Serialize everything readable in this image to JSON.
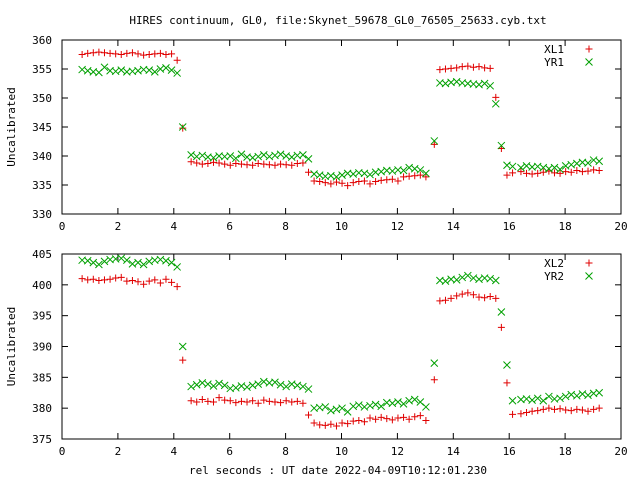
{
  "title": "HIRES continuum, GL0, file:Skynet_59678_GL0_76505_25633.cyb.txt",
  "xlabel": "rel seconds : UT date 2022-04-09T10:12:01.230",
  "chart_data": [
    {
      "type": "scatter",
      "ylabel": "Uncalibrated",
      "xlim": [
        0,
        20
      ],
      "ylim": [
        330,
        360
      ],
      "xticks": [
        0,
        2,
        4,
        6,
        8,
        10,
        12,
        14,
        16,
        18,
        20
      ],
      "yticks": [
        330,
        335,
        340,
        345,
        350,
        355,
        360
      ],
      "legend_position": "top-right",
      "series": [
        {
          "name": "XL1",
          "marker": "plus",
          "color": "#e00000",
          "x": [
            0.72,
            0.92,
            1.12,
            1.32,
            1.52,
            1.72,
            1.92,
            2.12,
            2.32,
            2.52,
            2.72,
            2.92,
            3.12,
            3.32,
            3.52,
            3.72,
            3.92,
            4.12,
            4.32,
            4.62,
            4.82,
            5.02,
            5.22,
            5.42,
            5.62,
            5.82,
            6.02,
            6.22,
            6.42,
            6.62,
            6.82,
            7.02,
            7.22,
            7.42,
            7.62,
            7.82,
            8.02,
            8.22,
            8.42,
            8.62,
            8.82,
            9.02,
            9.22,
            9.42,
            9.62,
            9.82,
            10.02,
            10.22,
            10.42,
            10.62,
            10.82,
            11.02,
            11.22,
            11.42,
            11.62,
            11.82,
            12.02,
            12.22,
            12.42,
            12.62,
            12.82,
            13.02,
            13.32,
            13.52,
            13.72,
            13.92,
            14.12,
            14.32,
            14.52,
            14.72,
            14.92,
            15.12,
            15.32,
            15.52,
            15.72,
            15.92,
            16.12,
            16.42,
            16.62,
            16.82,
            17.02,
            17.22,
            17.42,
            17.62,
            17.82,
            18.02,
            18.22,
            18.42,
            18.62,
            18.82,
            19.02,
            19.22
          ],
          "y": [
            357.5,
            357.7,
            357.8,
            357.9,
            357.8,
            357.7,
            357.6,
            357.5,
            357.7,
            357.8,
            357.6,
            357.4,
            357.5,
            357.6,
            357.7,
            357.5,
            357.6,
            356.5,
            344.8,
            339.0,
            338.8,
            338.6,
            338.7,
            338.9,
            338.8,
            338.6,
            338.4,
            338.7,
            338.6,
            338.5,
            338.4,
            338.7,
            338.6,
            338.5,
            338.4,
            338.6,
            338.5,
            338.4,
            338.7,
            338.8,
            337.2,
            335.7,
            335.6,
            335.4,
            335.2,
            335.5,
            335.3,
            334.9,
            335.4,
            335.6,
            335.7,
            335.2,
            335.6,
            335.8,
            335.9,
            336.0,
            335.7,
            336.4,
            336.5,
            336.6,
            336.7,
            336.4,
            342.0,
            354.9,
            355.0,
            355.1,
            355.2,
            355.4,
            355.5,
            355.3,
            355.4,
            355.2,
            355.1,
            350.1,
            341.3,
            336.7,
            337.1,
            337.3,
            337.0,
            336.9,
            337.0,
            337.2,
            337.4,
            337.1,
            337.0,
            337.3,
            337.2,
            337.5,
            337.3,
            337.4,
            337.6,
            337.5
          ]
        },
        {
          "name": "YR1",
          "marker": "cross",
          "color": "#00a000",
          "x": [
            0.72,
            0.92,
            1.12,
            1.32,
            1.52,
            1.72,
            1.92,
            2.12,
            2.32,
            2.52,
            2.72,
            2.92,
            3.12,
            3.32,
            3.52,
            3.72,
            3.92,
            4.12,
            4.32,
            4.62,
            4.82,
            5.02,
            5.22,
            5.42,
            5.62,
            5.82,
            6.02,
            6.22,
            6.42,
            6.62,
            6.82,
            7.02,
            7.22,
            7.42,
            7.62,
            7.82,
            8.02,
            8.22,
            8.42,
            8.62,
            8.82,
            9.02,
            9.22,
            9.42,
            9.62,
            9.82,
            10.02,
            10.22,
            10.42,
            10.62,
            10.82,
            11.02,
            11.22,
            11.42,
            11.62,
            11.82,
            12.02,
            12.22,
            12.42,
            12.62,
            12.82,
            13.02,
            13.32,
            13.52,
            13.72,
            13.92,
            14.12,
            14.32,
            14.52,
            14.72,
            14.92,
            15.12,
            15.32,
            15.52,
            15.72,
            15.92,
            16.12,
            16.42,
            16.62,
            16.82,
            17.02,
            17.22,
            17.42,
            17.62,
            17.82,
            18.02,
            18.22,
            18.42,
            18.62,
            18.82,
            19.02,
            19.22
          ],
          "y": [
            354.9,
            354.7,
            354.5,
            354.4,
            355.3,
            354.7,
            354.6,
            354.8,
            354.5,
            354.6,
            354.7,
            354.9,
            354.8,
            354.5,
            355.0,
            355.2,
            354.8,
            354.3,
            345.0,
            340.2,
            339.9,
            340.1,
            339.8,
            339.7,
            340.0,
            339.9,
            340.0,
            339.6,
            340.3,
            339.8,
            339.7,
            339.9,
            340.2,
            339.9,
            340.1,
            340.3,
            340.0,
            339.8,
            340.1,
            340.2,
            339.5,
            336.9,
            336.7,
            336.5,
            336.6,
            336.4,
            336.7,
            337.0,
            336.9,
            337.1,
            337.0,
            336.8,
            337.2,
            337.3,
            337.5,
            337.4,
            337.6,
            337.5,
            338.0,
            337.8,
            337.6,
            337.0,
            342.6,
            352.6,
            352.5,
            352.7,
            352.8,
            352.6,
            352.5,
            352.4,
            352.3,
            352.5,
            352.1,
            349.0,
            341.8,
            338.4,
            338.2,
            338.0,
            338.3,
            338.1,
            338.2,
            338.0,
            337.8,
            338.0,
            337.7,
            338.3,
            338.5,
            338.7,
            338.9,
            338.8,
            339.3,
            339.1
          ]
        }
      ]
    },
    {
      "type": "scatter",
      "ylabel": "Uncalibrated",
      "xlim": [
        0,
        20
      ],
      "ylim": [
        375,
        405
      ],
      "xticks": [
        0,
        2,
        4,
        6,
        8,
        10,
        12,
        14,
        16,
        18,
        20
      ],
      "yticks": [
        375,
        380,
        385,
        390,
        395,
        400,
        405
      ],
      "legend_position": "top-right",
      "series": [
        {
          "name": "XL2",
          "marker": "plus",
          "color": "#e00000",
          "x": [
            0.72,
            0.92,
            1.12,
            1.32,
            1.52,
            1.72,
            1.92,
            2.12,
            2.32,
            2.52,
            2.72,
            2.92,
            3.12,
            3.32,
            3.52,
            3.72,
            3.92,
            4.12,
            4.32,
            4.62,
            4.82,
            5.02,
            5.22,
            5.42,
            5.62,
            5.82,
            6.02,
            6.22,
            6.42,
            6.62,
            6.82,
            7.02,
            7.22,
            7.42,
            7.62,
            7.82,
            8.02,
            8.22,
            8.42,
            8.62,
            8.82,
            9.02,
            9.22,
            9.42,
            9.62,
            9.82,
            10.02,
            10.22,
            10.42,
            10.62,
            10.82,
            11.02,
            11.22,
            11.42,
            11.62,
            11.82,
            12.02,
            12.22,
            12.42,
            12.62,
            12.82,
            13.02,
            13.32,
            13.52,
            13.72,
            13.92,
            14.12,
            14.32,
            14.52,
            14.72,
            14.92,
            15.12,
            15.32,
            15.52,
            15.72,
            15.92,
            16.12,
            16.42,
            16.62,
            16.82,
            17.02,
            17.22,
            17.42,
            17.62,
            17.82,
            18.02,
            18.22,
            18.42,
            18.62,
            18.82,
            19.02,
            19.22
          ],
          "y": [
            401.0,
            400.8,
            400.9,
            400.7,
            400.8,
            400.9,
            401.1,
            401.2,
            400.6,
            400.7,
            400.5,
            400.1,
            400.6,
            400.8,
            400.3,
            400.9,
            400.4,
            399.7,
            387.8,
            381.2,
            381.0,
            381.4,
            381.1,
            381.0,
            381.7,
            381.3,
            381.2,
            380.9,
            381.1,
            381.0,
            381.2,
            380.8,
            381.3,
            381.1,
            381.0,
            380.9,
            381.2,
            381.0,
            381.1,
            380.8,
            378.9,
            377.6,
            377.3,
            377.2,
            377.4,
            377.1,
            377.6,
            377.5,
            377.9,
            378.0,
            377.8,
            378.4,
            378.2,
            378.5,
            378.3,
            378.1,
            378.4,
            378.5,
            378.2,
            378.6,
            378.8,
            378.0,
            384.6,
            397.4,
            397.5,
            397.8,
            398.2,
            398.5,
            398.7,
            398.4,
            398.0,
            397.9,
            398.1,
            397.8,
            393.1,
            384.1,
            379.0,
            379.1,
            379.3,
            379.5,
            379.6,
            379.8,
            380.0,
            379.8,
            379.9,
            379.7,
            379.6,
            379.8,
            379.7,
            379.5,
            379.8,
            380.0
          ]
        },
        {
          "name": "YR2",
          "marker": "cross",
          "color": "#00a000",
          "x": [
            0.72,
            0.92,
            1.12,
            1.32,
            1.52,
            1.72,
            1.92,
            2.12,
            2.32,
            2.52,
            2.72,
            2.92,
            3.12,
            3.32,
            3.52,
            3.72,
            3.92,
            4.12,
            4.32,
            4.62,
            4.82,
            5.02,
            5.22,
            5.42,
            5.62,
            5.82,
            6.02,
            6.22,
            6.42,
            6.62,
            6.82,
            7.02,
            7.22,
            7.42,
            7.62,
            7.82,
            8.02,
            8.22,
            8.42,
            8.62,
            8.82,
            9.02,
            9.22,
            9.42,
            9.62,
            9.82,
            10.02,
            10.22,
            10.42,
            10.62,
            10.82,
            11.02,
            11.22,
            11.42,
            11.62,
            11.82,
            12.02,
            12.22,
            12.42,
            12.62,
            12.82,
            13.02,
            13.32,
            13.52,
            13.72,
            13.92,
            14.12,
            14.32,
            14.52,
            14.72,
            14.92,
            15.12,
            15.32,
            15.52,
            15.72,
            15.92,
            16.12,
            16.42,
            16.62,
            16.82,
            17.02,
            17.22,
            17.42,
            17.62,
            17.82,
            18.02,
            18.22,
            18.42,
            18.62,
            18.82,
            19.02,
            19.22
          ],
          "y": [
            404.0,
            403.9,
            403.6,
            403.3,
            403.8,
            404.1,
            404.2,
            404.3,
            404.0,
            403.4,
            403.6,
            403.3,
            403.8,
            404.0,
            404.1,
            403.9,
            403.6,
            402.9,
            390.0,
            383.5,
            383.8,
            384.1,
            383.9,
            383.6,
            384.0,
            383.7,
            383.2,
            383.3,
            383.6,
            383.4,
            383.7,
            383.9,
            384.3,
            384.1,
            384.2,
            383.8,
            383.5,
            383.9,
            383.7,
            383.5,
            383.1,
            380.0,
            380.1,
            380.2,
            379.6,
            379.8,
            380.0,
            379.4,
            380.3,
            380.5,
            380.2,
            380.4,
            380.6,
            380.3,
            380.9,
            380.8,
            381.0,
            380.7,
            381.2,
            381.4,
            381.0,
            380.2,
            387.3,
            400.7,
            400.6,
            400.9,
            400.8,
            401.2,
            401.5,
            401.1,
            400.9,
            401.1,
            401.0,
            400.7,
            395.6,
            387.0,
            381.2,
            381.4,
            381.5,
            381.3,
            381.6,
            381.2,
            381.9,
            381.5,
            381.6,
            381.9,
            382.2,
            382.0,
            382.3,
            382.1,
            382.4,
            382.5
          ]
        }
      ]
    }
  ]
}
